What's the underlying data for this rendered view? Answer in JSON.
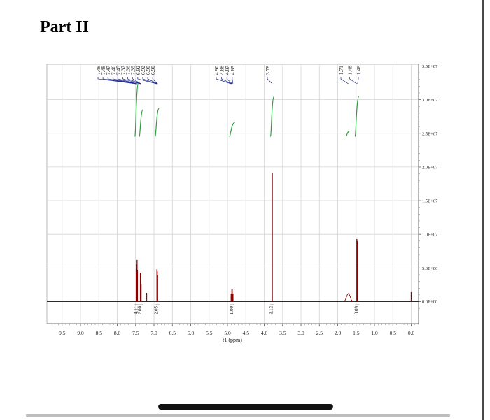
{
  "page": {
    "title": "Part II"
  },
  "chart_data": {
    "type": "line",
    "xlabel": "f1 (ppm)",
    "ylabel": "",
    "x_reversed": true,
    "xlim": [
      -0.4,
      9.8
    ],
    "ylim": [
      -1700000,
      37000000
    ],
    "x_ticks": [
      "9.5",
      "9.0",
      "8.5",
      "8.0",
      "7.5",
      "7.0",
      "6.5",
      "6.0",
      "5.5",
      "5.0",
      "4.5",
      "4.0",
      "3.5",
      "3.0",
      "2.5",
      "2.0",
      "1.5",
      "1.0",
      "0.5",
      "0.0"
    ],
    "y_ticks": [
      "3.5E+07",
      "3.0E+07",
      "2.5E+07",
      "2.0E+07",
      "1.5E+07",
      "1.0E+07",
      "5.0E+06",
      "0.0E+00"
    ],
    "y_tick_values": [
      35000000,
      30000000,
      25000000,
      20000000,
      15000000,
      10000000,
      5000000,
      0
    ],
    "peak_labels": [
      "7.48",
      "7.48",
      "7.47",
      "7.46",
      "7.45",
      "7.37",
      "7.36",
      "7.35",
      "6.92",
      "6.92",
      "6.90",
      "6.90",
      "4.90",
      "4.88",
      "4.87",
      "4.85",
      "3.78",
      "1.71",
      "1.48",
      "1.46"
    ],
    "peak_label_groups": [
      {
        "labels": [
          "7.48",
          "7.48",
          "7.47",
          "7.46",
          "7.45",
          "7.37",
          "7.36",
          "7.35",
          "6.92",
          "6.92",
          "6.90",
          "6.90"
        ]
      },
      {
        "labels": [
          "4.90",
          "4.88",
          "4.87",
          "4.85"
        ]
      },
      {
        "labels": [
          "3.78"
        ]
      },
      {
        "labels": [
          "1.71",
          "1.48",
          "1.46"
        ]
      }
    ],
    "integrals": [
      {
        "label": "4.11",
        "ppm": 7.47
      },
      {
        "label": "2.00",
        "ppm": 7.36
      },
      {
        "label": "2.05",
        "ppm": 6.91
      },
      {
        "label": "1.00",
        "ppm": 4.87
      },
      {
        "label": "3.13",
        "ppm": 3.78
      },
      {
        "label": "3.09",
        "ppm": 1.47
      }
    ],
    "peaks": [
      {
        "ppm": 7.48,
        "height": 4300000
      },
      {
        "ppm": 7.47,
        "height": 5500000
      },
      {
        "ppm": 7.46,
        "height": 6200000
      },
      {
        "ppm": 7.45,
        "height": 4700000
      },
      {
        "ppm": 7.37,
        "height": 4300000
      },
      {
        "ppm": 7.36,
        "height": 3800000
      },
      {
        "ppm": 7.35,
        "height": 2600000
      },
      {
        "ppm": 7.2,
        "height": 1300000
      },
      {
        "ppm": 6.92,
        "height": 4800000
      },
      {
        "ppm": 6.91,
        "height": 4500000
      },
      {
        "ppm": 6.9,
        "height": 3900000
      },
      {
        "ppm": 4.9,
        "height": 1200000
      },
      {
        "ppm": 4.88,
        "height": 1800000
      },
      {
        "ppm": 4.87,
        "height": 1800000
      },
      {
        "ppm": 4.85,
        "height": 1200000
      },
      {
        "ppm": 3.78,
        "height": 19100000
      },
      {
        "ppm": 1.71,
        "height": 1200000
      },
      {
        "ppm": 1.48,
        "height": 9300000
      },
      {
        "ppm": 1.46,
        "height": 9000000
      },
      {
        "ppm": 0.0,
        "height": 1400000
      }
    ],
    "integral_curves": [
      {
        "ppm_start": 7.52,
        "ppm_end": 7.42,
        "y_low": 24500000,
        "y_high": 32500000
      },
      {
        "ppm_start": 7.4,
        "ppm_end": 7.3,
        "y_low": 24500000,
        "y_high": 28500000
      },
      {
        "ppm_start": 6.97,
        "ppm_end": 6.86,
        "y_low": 24500000,
        "y_high": 28700000
      },
      {
        "ppm_start": 4.95,
        "ppm_end": 4.8,
        "y_low": 24500000,
        "y_high": 26600000
      },
      {
        "ppm_start": 3.83,
        "ppm_end": 3.73,
        "y_low": 24500000,
        "y_high": 30500000
      },
      {
        "ppm_start": 1.78,
        "ppm_end": 1.68,
        "y_low": 24500000,
        "y_high": 25300000
      },
      {
        "ppm_start": 1.53,
        "ppm_end": 1.42,
        "y_low": 24500000,
        "y_high": 30500000
      }
    ],
    "grid": true,
    "colors": {
      "spectrum": "#8b0000",
      "integral": "#2e9e3e",
      "peak_label_connector": "#1f2a8c",
      "grid": "#d4d4d4"
    }
  }
}
